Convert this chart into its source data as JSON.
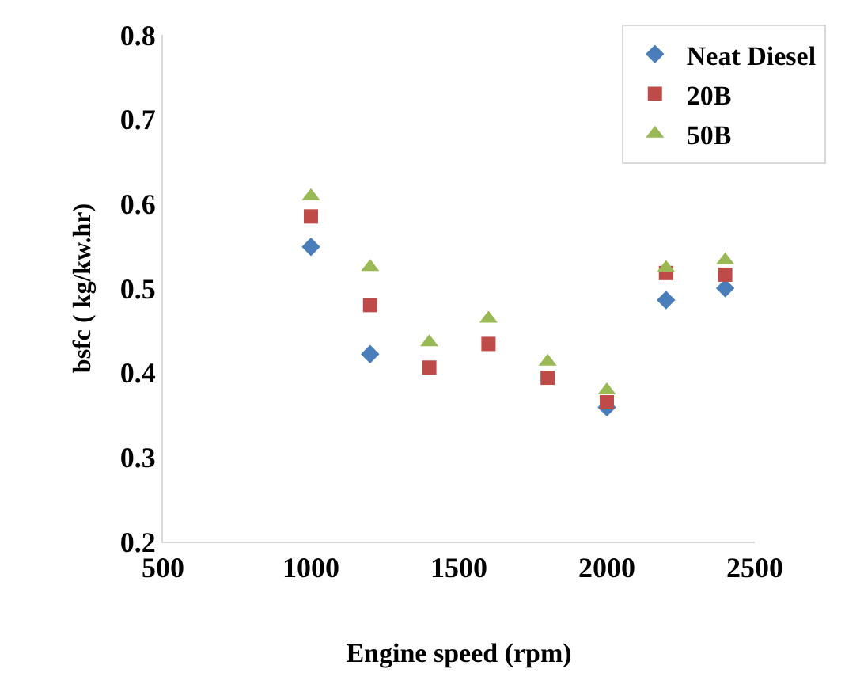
{
  "chart_data": {
    "type": "scatter",
    "xlabel": "Engine speed (rpm)",
    "ylabel": "bsfc ( kg/kw.hr)",
    "x": [
      1000,
      1200,
      1400,
      1600,
      1800,
      2000,
      2200,
      2400
    ],
    "series": [
      {
        "name": "Neat Diesel",
        "color": "#4a7ebb",
        "marker": "diamond",
        "values": [
          0.549,
          0.422,
          null,
          null,
          null,
          0.359,
          0.486,
          0.5
        ]
      },
      {
        "name": "20B",
        "color": "#be4b48",
        "marker": "square",
        "values": [
          0.585,
          0.48,
          0.406,
          0.434,
          0.394,
          0.365,
          0.518,
          0.516
        ]
      },
      {
        "name": "50B",
        "color": "#98b954",
        "marker": "triangle",
        "values": [
          0.609,
          0.525,
          0.436,
          0.464,
          0.413,
          0.379,
          0.524,
          0.533
        ]
      }
    ],
    "xlim": [
      500,
      2500
    ],
    "xticks": [
      500,
      1000,
      1500,
      2000,
      2500
    ],
    "ylim": [
      0.2,
      0.8
    ],
    "yticks": [
      {
        "value": 0.2,
        "label": "0.2"
      },
      {
        "value": 0.3,
        "label": "0.3"
      },
      {
        "value": 0.4,
        "label": "0.4"
      },
      {
        "value": 0.5,
        "label": "0.5"
      },
      {
        "value": 0.6,
        "label": "0.6"
      },
      {
        "value": 0.7,
        "label": "0.7"
      },
      {
        "value": 0.8,
        "label": "0.8"
      }
    ],
    "grid": false,
    "legend": "top right"
  }
}
